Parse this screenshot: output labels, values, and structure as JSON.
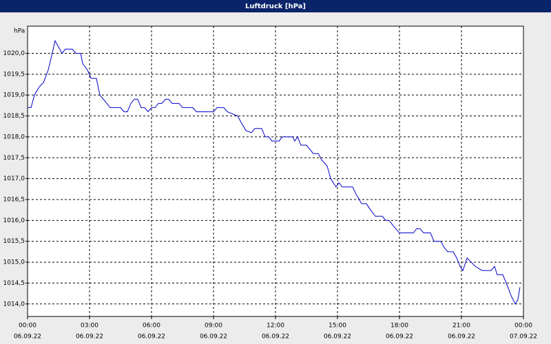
{
  "chart_data": {
    "type": "line",
    "title": "Luftdruck [hPa]",
    "y_label": "hPa",
    "xlim": [
      0,
      24
    ],
    "ylim": [
      1013.7,
      1020.65
    ],
    "xticks": [
      {
        "value": 0,
        "label": "00:00",
        "date": "06.09.22"
      },
      {
        "value": 3,
        "label": "03:00",
        "date": "06.09.22"
      },
      {
        "value": 6,
        "label": "06:00",
        "date": "06.09.22"
      },
      {
        "value": 9,
        "label": "09:00",
        "date": "06.09.22"
      },
      {
        "value": 12,
        "label": "12:00",
        "date": "06.09.22"
      },
      {
        "value": 15,
        "label": "15:00",
        "date": "06.09.22"
      },
      {
        "value": 18,
        "label": "18:00",
        "date": "06.09.22"
      },
      {
        "value": 21,
        "label": "21:00",
        "date": "06.09.22"
      },
      {
        "value": 24,
        "label": "00:00",
        "date": "07.09.22"
      }
    ],
    "yticks": [
      {
        "value": 1014.0,
        "label": "1014,0"
      },
      {
        "value": 1014.5,
        "label": "1014,5"
      },
      {
        "value": 1015.0,
        "label": "1015,0"
      },
      {
        "value": 1015.5,
        "label": "1015,5"
      },
      {
        "value": 1016.0,
        "label": "1016,0"
      },
      {
        "value": 1016.5,
        "label": "1016,5"
      },
      {
        "value": 1017.0,
        "label": "1017,0"
      },
      {
        "value": 1017.5,
        "label": "1017,5"
      },
      {
        "value": 1018.0,
        "label": "1018,0"
      },
      {
        "value": 1018.5,
        "label": "1018,5"
      },
      {
        "value": 1019.0,
        "label": "1019,0"
      },
      {
        "value": 1019.5,
        "label": "1019,5"
      },
      {
        "value": 1020.0,
        "label": "1020,0"
      }
    ],
    "grid": true,
    "series": [
      {
        "color": "#0000cc",
        "x": [
          0,
          0.17,
          0.33,
          0.57,
          0.77,
          1,
          1.17,
          1.33,
          1.5,
          1.67,
          1.83,
          2.17,
          2.33,
          2.57,
          2.67,
          2.9,
          3.07,
          3.33,
          3.5,
          3.67,
          4,
          4.5,
          4.67,
          4.83,
          5,
          5.17,
          5.33,
          5.5,
          5.67,
          5.83,
          6,
          6.17,
          6.33,
          6.5,
          6.67,
          6.83,
          7,
          7.33,
          7.5,
          8,
          8.17,
          9,
          9.17,
          9.5,
          9.67,
          10.17,
          10.33,
          10.57,
          10.83,
          11,
          11.33,
          11.5,
          11.67,
          11.83,
          12.17,
          12.33,
          12.83,
          12.93,
          13.07,
          13.23,
          13.5,
          13.83,
          14.07,
          14.23,
          14.5,
          14.67,
          14.93,
          15.07,
          15.23,
          15.73,
          15.93,
          16.17,
          16.4,
          16.6,
          16.83,
          17.17,
          17.33,
          17.5,
          17.73,
          18,
          18.67,
          18.83,
          19,
          19.17,
          19.5,
          19.67,
          20,
          20.17,
          20.33,
          20.6,
          20.77,
          20.93,
          21.07,
          21.27,
          21.47,
          21.67,
          22,
          22.43,
          22.6,
          22.73,
          23,
          23.17,
          23.4,
          23.6,
          23.73,
          23.83
        ],
        "values": [
          1018.7,
          1018.7,
          1019.0,
          1019.2,
          1019.3,
          1019.6,
          1019.95,
          1020.3,
          1020.15,
          1020.0,
          1020.1,
          1020.1,
          1020.0,
          1020.0,
          1019.75,
          1019.6,
          1019.4,
          1019.4,
          1019.0,
          1018.9,
          1018.7,
          1018.7,
          1018.6,
          1018.6,
          1018.8,
          1018.9,
          1018.9,
          1018.7,
          1018.7,
          1018.6,
          1018.7,
          1018.7,
          1018.8,
          1018.8,
          1018.9,
          1018.9,
          1018.8,
          1018.8,
          1018.7,
          1018.7,
          1018.6,
          1018.6,
          1018.7,
          1018.7,
          1018.6,
          1018.5,
          1018.35,
          1018.15,
          1018.1,
          1018.2,
          1018.2,
          1018.0,
          1018.0,
          1017.9,
          1017.9,
          1018.0,
          1018.0,
          1017.9,
          1018.0,
          1017.8,
          1017.8,
          1017.6,
          1017.6,
          1017.45,
          1017.3,
          1017.0,
          1016.8,
          1016.9,
          1016.8,
          1016.8,
          1016.6,
          1016.4,
          1016.4,
          1016.25,
          1016.1,
          1016.1,
          1016.0,
          1016.0,
          1015.85,
          1015.7,
          1015.7,
          1015.8,
          1015.8,
          1015.7,
          1015.7,
          1015.5,
          1015.5,
          1015.35,
          1015.25,
          1015.25,
          1015.1,
          1014.9,
          1014.8,
          1015.1,
          1015.0,
          1014.9,
          1014.8,
          1014.8,
          1014.9,
          1014.7,
          1014.7,
          1014.5,
          1014.2,
          1014.0,
          1014.1,
          1014.4
        ]
      }
    ]
  }
}
